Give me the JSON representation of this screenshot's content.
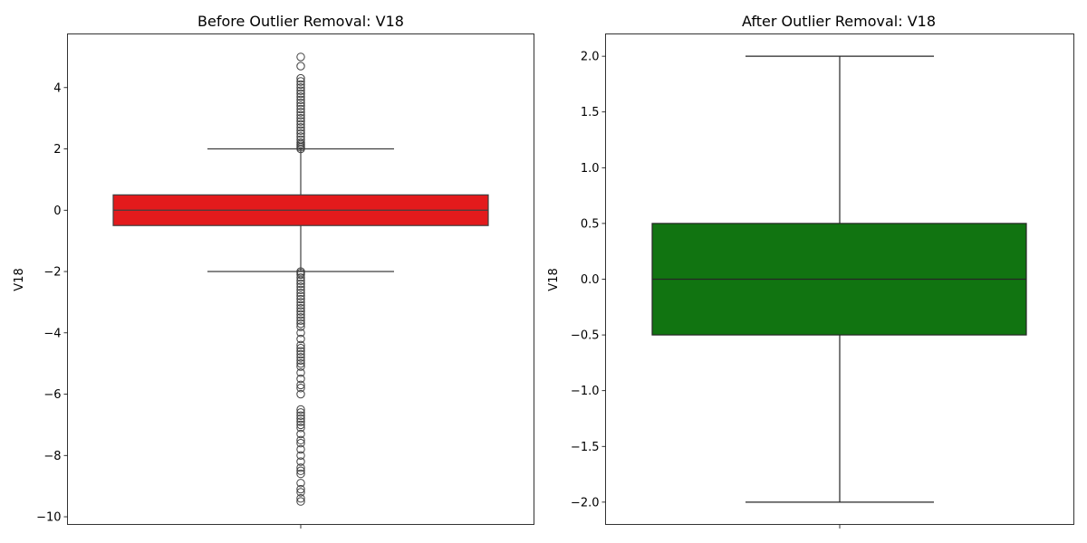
{
  "chart_data": [
    {
      "type": "box",
      "title": "Before Outlier Removal: V18",
      "xlabel": "",
      "ylabel": "V18",
      "ylim": [
        -10.25,
        5.75
      ],
      "yticks": [
        -10,
        -8,
        -6,
        -4,
        -2,
        0,
        2,
        4
      ],
      "ytick_labels": [
        "−10",
        "−8",
        "−6",
        "−4",
        "−2",
        "0",
        "2",
        "4"
      ],
      "box_color": "#e31a1c",
      "line_color": "#3f3f3f",
      "grid": false,
      "box": {
        "q1": -0.5,
        "median": 0.0,
        "q3": 0.5,
        "whisker_low": -2.0,
        "whisker_high": 2.0
      },
      "outliers": [
        2.0,
        2.05,
        2.1,
        2.15,
        2.2,
        2.3,
        2.4,
        2.5,
        2.6,
        2.7,
        2.8,
        2.9,
        3.0,
        3.1,
        3.2,
        3.3,
        3.4,
        3.5,
        3.6,
        3.7,
        3.8,
        3.9,
        4.0,
        4.1,
        4.2,
        4.3,
        4.7,
        5.0,
        -2.0,
        -2.05,
        -2.1,
        -2.2,
        -2.3,
        -2.4,
        -2.5,
        -2.6,
        -2.7,
        -2.8,
        -2.9,
        -3.0,
        -3.1,
        -3.2,
        -3.3,
        -3.4,
        -3.5,
        -3.6,
        -3.7,
        -3.8,
        -4.0,
        -4.2,
        -4.4,
        -4.5,
        -4.6,
        -4.7,
        -4.8,
        -4.9,
        -5.0,
        -5.1,
        -5.3,
        -5.5,
        -5.7,
        -5.8,
        -6.0,
        -6.5,
        -6.6,
        -6.7,
        -6.8,
        -6.9,
        -7.0,
        -7.1,
        -7.3,
        -7.5,
        -7.6,
        -7.8,
        -8.0,
        -8.2,
        -8.4,
        -8.5,
        -8.6,
        -8.9,
        -9.1,
        -9.2,
        -9.4,
        -9.5
      ]
    },
    {
      "type": "box",
      "title": "After Outlier Removal: V18",
      "xlabel": "",
      "ylabel": "V18",
      "ylim": [
        -2.2,
        2.2
      ],
      "yticks": [
        -2.0,
        -1.5,
        -1.0,
        -0.5,
        0.0,
        0.5,
        1.0,
        1.5,
        2.0
      ],
      "ytick_labels": [
        "−2.0",
        "−1.5",
        "−1.0",
        "−0.5",
        "0.0",
        "0.5",
        "1.0",
        "1.5",
        "2.0"
      ],
      "box_color": "#117411",
      "line_color": "#262626",
      "grid": false,
      "box": {
        "q1": -0.5,
        "median": 0.0,
        "q3": 0.5,
        "whisker_low": -2.0,
        "whisker_high": 2.0
      },
      "outliers": []
    }
  ]
}
